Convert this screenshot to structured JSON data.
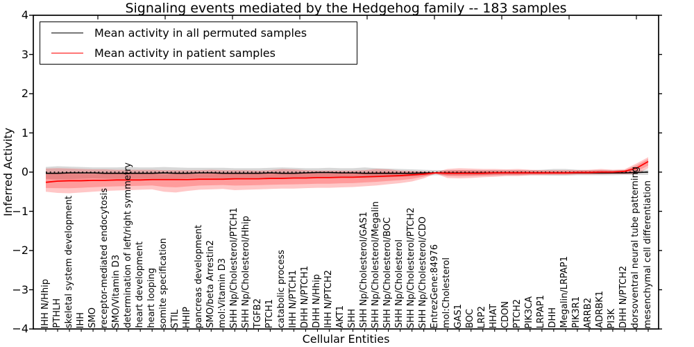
{
  "title": "Signaling events mediated by the Hedgehog family -- 183 samples",
  "chart_data": {
    "type": "line",
    "title": "Signaling events mediated by the Hedgehog family -- 183 samples",
    "xlabel": "Cellular Entities",
    "ylabel": "Inferred Activity",
    "ylim": [
      -4,
      4
    ],
    "yticks": [
      -4,
      -3,
      -2,
      -1,
      0,
      1,
      2,
      3,
      4
    ],
    "grid": false,
    "legend_position": "upper left",
    "zero_reference_line": "dotted black at y=0",
    "categories": [
      "IHH N/Hhip",
      "PTHLH",
      "skeletal system development",
      "IHH",
      "SMO",
      "receptor-mediated endocytosis",
      "SMO/Vitamin D3",
      "determination of left/right symmetry",
      "heart development",
      "heart looping",
      "somite specification",
      "STIL",
      "HHIP",
      "pancreas development",
      "SMO/beta Arrestin2",
      "mol:Vitamin D3",
      "SHH Np/Cholesterol/PTCH1",
      "SHH Np/Cholesterol/Hhip",
      "TGFB2",
      "PTCH1",
      "catabolic process",
      "IHH N/PTCH1",
      "DHH N/PTCH1",
      "DHH N/Hhip",
      "IHH N/PTCH2",
      "AKT1",
      "SHH",
      "SHH Np/Cholesterol/GAS1",
      "SHH Np/Cholesterol/Megalin",
      "SHH Np/Cholesterol/BOC",
      "SHH Np/Cholesterol",
      "SHH Np/Cholesterol/PTCH2",
      "SHH Np/Cholesterol/CDO",
      "EntrezGene:84976",
      "mol:Cholesterol",
      "GAS1",
      "BOC",
      "LRP2",
      "HHAT",
      "CDON",
      "PTCH2",
      "PIK3CA",
      "LRPAP1",
      "DHH",
      "Megalin/LRPAP1",
      "PIK3R1",
      "ARRB2",
      "ADRBK1",
      "PI3K",
      "DHH N/PTCH2",
      "dorsoventral neural tube patterning",
      "mesenchymal cell differentiation"
    ],
    "series": [
      {
        "name": "Mean activity in all permuted samples",
        "color": "#000000",
        "line_width": 1.6,
        "band_color": "#999999",
        "band_opacity": 0.38,
        "values": [
          -0.03,
          -0.03,
          -0.02,
          -0.02,
          -0.02,
          -0.03,
          -0.03,
          -0.03,
          -0.03,
          -0.03,
          -0.02,
          -0.03,
          -0.03,
          -0.02,
          -0.02,
          -0.03,
          -0.03,
          -0.03,
          -0.03,
          -0.02,
          -0.03,
          -0.03,
          -0.02,
          -0.01,
          -0.01,
          -0.02,
          -0.02,
          -0.03,
          -0.03,
          -0.03,
          -0.03,
          -0.03,
          -0.02,
          -0.02,
          -0.02,
          -0.02,
          -0.02,
          -0.02,
          -0.02,
          -0.02,
          -0.02,
          -0.02,
          -0.02,
          -0.02,
          -0.02,
          -0.02,
          -0.02,
          -0.02,
          -0.02,
          -0.02,
          -0.01,
          0.0
        ],
        "band_upper": [
          0.13,
          0.15,
          0.14,
          0.13,
          0.12,
          0.12,
          0.12,
          0.13,
          0.12,
          0.12,
          0.13,
          0.12,
          0.11,
          0.11,
          0.11,
          0.11,
          0.1,
          0.1,
          0.1,
          0.11,
          0.12,
          0.11,
          0.1,
          0.1,
          0.11,
          0.1,
          0.1,
          0.12,
          0.1,
          0.09,
          0.08,
          0.07,
          0.06,
          0.05,
          0.05,
          0.05,
          0.05,
          0.05,
          0.05,
          0.05,
          0.05,
          0.05,
          0.06,
          0.08,
          0.08,
          0.06,
          0.05,
          0.05,
          0.05,
          0.05,
          0.05,
          0.06
        ],
        "band_lower": [
          -0.17,
          -0.19,
          -0.18,
          -0.17,
          -0.16,
          -0.17,
          -0.17,
          -0.17,
          -0.17,
          -0.17,
          -0.17,
          -0.17,
          -0.16,
          -0.15,
          -0.15,
          -0.16,
          -0.16,
          -0.15,
          -0.15,
          -0.15,
          -0.16,
          -0.16,
          -0.14,
          -0.13,
          -0.13,
          -0.14,
          -0.14,
          -0.15,
          -0.14,
          -0.13,
          -0.12,
          -0.11,
          -0.09,
          -0.08,
          -0.08,
          -0.08,
          -0.08,
          -0.08,
          -0.08,
          -0.08,
          -0.08,
          -0.08,
          -0.08,
          -0.09,
          -0.09,
          -0.08,
          -0.08,
          -0.08,
          -0.08,
          -0.07,
          -0.07,
          -0.07
        ]
      },
      {
        "name": "Mean activity in patient samples",
        "color": "#ff0000",
        "line_width": 1.8,
        "band_color": "#ff0000",
        "band_opacity": 0.22,
        "band_inner_scale": 0.6,
        "values": [
          -0.26,
          -0.23,
          -0.22,
          -0.22,
          -0.21,
          -0.21,
          -0.2,
          -0.2,
          -0.2,
          -0.19,
          -0.19,
          -0.19,
          -0.19,
          -0.18,
          -0.18,
          -0.18,
          -0.17,
          -0.17,
          -0.17,
          -0.16,
          -0.16,
          -0.15,
          -0.15,
          -0.14,
          -0.14,
          -0.13,
          -0.13,
          -0.12,
          -0.11,
          -0.1,
          -0.09,
          -0.07,
          -0.05,
          -0.02,
          -0.03,
          -0.03,
          -0.03,
          -0.03,
          -0.02,
          -0.02,
          -0.02,
          -0.02,
          -0.02,
          -0.02,
          -0.02,
          -0.01,
          -0.01,
          0.0,
          0.0,
          0.02,
          0.1,
          0.27
        ],
        "band_upper": [
          0.09,
          0.1,
          0.09,
          0.08,
          0.07,
          0.07,
          0.06,
          0.06,
          0.06,
          0.06,
          0.05,
          0.05,
          0.05,
          0.05,
          0.06,
          0.05,
          0.05,
          0.05,
          0.04,
          0.05,
          0.08,
          0.07,
          0.05,
          0.04,
          0.04,
          0.04,
          0.04,
          0.05,
          0.08,
          0.07,
          0.04,
          0.03,
          0.02,
          0.0,
          0.08,
          0.1,
          0.09,
          0.08,
          0.08,
          0.07,
          0.08,
          0.06,
          0.05,
          0.05,
          0.05,
          0.05,
          0.06,
          0.08,
          0.06,
          0.07,
          0.22,
          0.38
        ],
        "band_lower": [
          -0.5,
          -0.53,
          -0.54,
          -0.52,
          -0.5,
          -0.48,
          -0.47,
          -0.46,
          -0.45,
          -0.44,
          -0.5,
          -0.52,
          -0.48,
          -0.45,
          -0.44,
          -0.43,
          -0.46,
          -0.45,
          -0.44,
          -0.43,
          -0.42,
          -0.42,
          -0.41,
          -0.4,
          -0.4,
          -0.39,
          -0.38,
          -0.36,
          -0.34,
          -0.31,
          -0.28,
          -0.24,
          -0.16,
          -0.04,
          -0.15,
          -0.16,
          -0.15,
          -0.13,
          -0.12,
          -0.1,
          -0.1,
          -0.08,
          -0.08,
          -0.07,
          -0.07,
          -0.06,
          -0.06,
          -0.06,
          -0.05,
          -0.05,
          -0.05,
          0.1
        ]
      }
    ]
  }
}
